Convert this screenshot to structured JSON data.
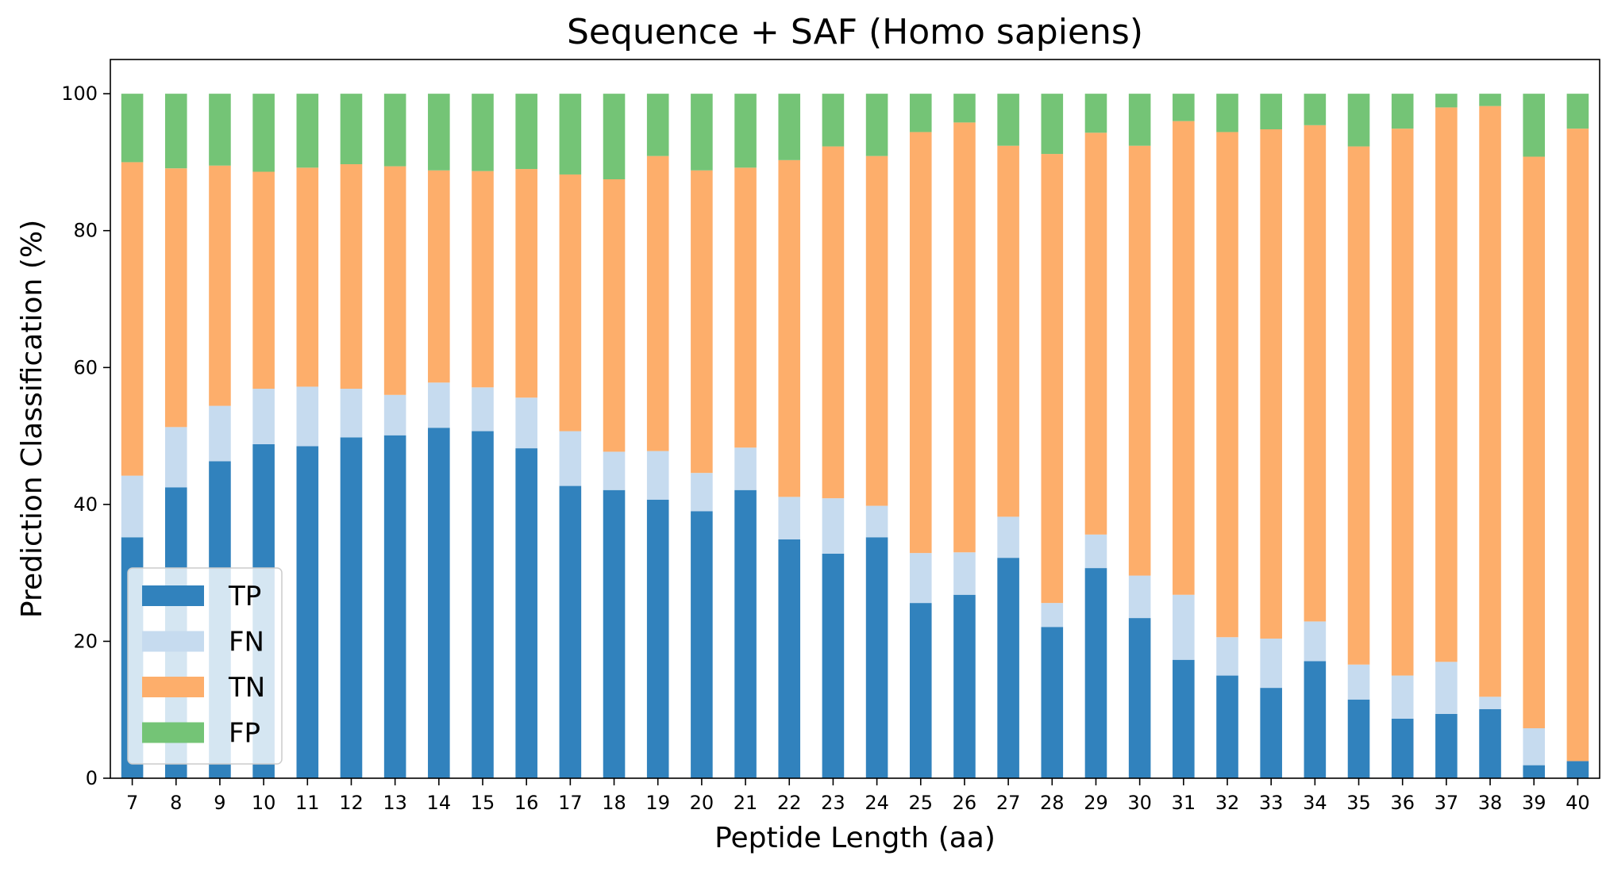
{
  "chart_data": {
    "type": "bar",
    "stacked": true,
    "title": "Sequence + SAF (Homo sapiens)",
    "xlabel": "Peptide Length (aa)",
    "ylabel": "Prediction Classification (%)",
    "ylim": [
      0,
      105
    ],
    "yticks": [
      0,
      20,
      40,
      60,
      80,
      100
    ],
    "grid": false,
    "legend_position": "lower-left",
    "categories": [
      "7",
      "8",
      "9",
      "10",
      "11",
      "12",
      "13",
      "14",
      "15",
      "16",
      "17",
      "18",
      "19",
      "20",
      "21",
      "22",
      "23",
      "24",
      "25",
      "26",
      "27",
      "28",
      "29",
      "30",
      "31",
      "32",
      "33",
      "34",
      "35",
      "36",
      "37",
      "38",
      "39",
      "40"
    ],
    "series": [
      {
        "name": "TP",
        "color": "#3182bd",
        "values": [
          35.2,
          42.5,
          46.3,
          48.8,
          48.5,
          49.8,
          50.1,
          51.2,
          50.7,
          48.2,
          42.7,
          42.1,
          40.7,
          39.0,
          42.1,
          34.9,
          32.8,
          35.2,
          25.6,
          26.8,
          32.2,
          22.1,
          30.7,
          23.4,
          17.3,
          15.0,
          13.2,
          17.1,
          11.5,
          8.7,
          9.4,
          10.1,
          1.9,
          2.5
        ]
      },
      {
        "name": "FN",
        "color": "#c6dbef",
        "values": [
          9.0,
          8.8,
          8.1,
          8.1,
          8.7,
          7.1,
          5.9,
          6.6,
          6.4,
          7.4,
          8.0,
          5.6,
          7.1,
          5.6,
          6.2,
          6.2,
          8.1,
          4.6,
          7.3,
          6.2,
          6.0,
          3.5,
          4.9,
          6.2,
          9.5,
          5.6,
          7.2,
          5.8,
          5.1,
          6.3,
          7.6,
          1.8,
          5.4,
          0.0
        ]
      },
      {
        "name": "TN",
        "color": "#fdae6b",
        "values": [
          45.8,
          37.8,
          35.1,
          31.7,
          32.0,
          32.8,
          33.4,
          31.0,
          31.6,
          33.4,
          37.5,
          39.8,
          43.1,
          44.2,
          40.9,
          49.2,
          51.4,
          51.1,
          61.5,
          62.8,
          54.2,
          65.6,
          58.7,
          62.8,
          69.2,
          73.8,
          74.4,
          72.5,
          75.7,
          79.9,
          81.0,
          86.3,
          83.5,
          92.4
        ]
      },
      {
        "name": "FP",
        "color": "#74c476",
        "values": [
          10.0,
          10.9,
          10.5,
          11.4,
          10.8,
          10.3,
          10.6,
          11.2,
          11.3,
          11.0,
          11.8,
          12.5,
          9.1,
          11.2,
          10.8,
          9.7,
          7.7,
          9.1,
          5.6,
          4.2,
          7.6,
          8.8,
          5.7,
          7.6,
          4.0,
          5.6,
          5.2,
          4.6,
          7.7,
          5.1,
          2.0,
          1.8,
          9.2,
          5.1
        ]
      }
    ]
  }
}
